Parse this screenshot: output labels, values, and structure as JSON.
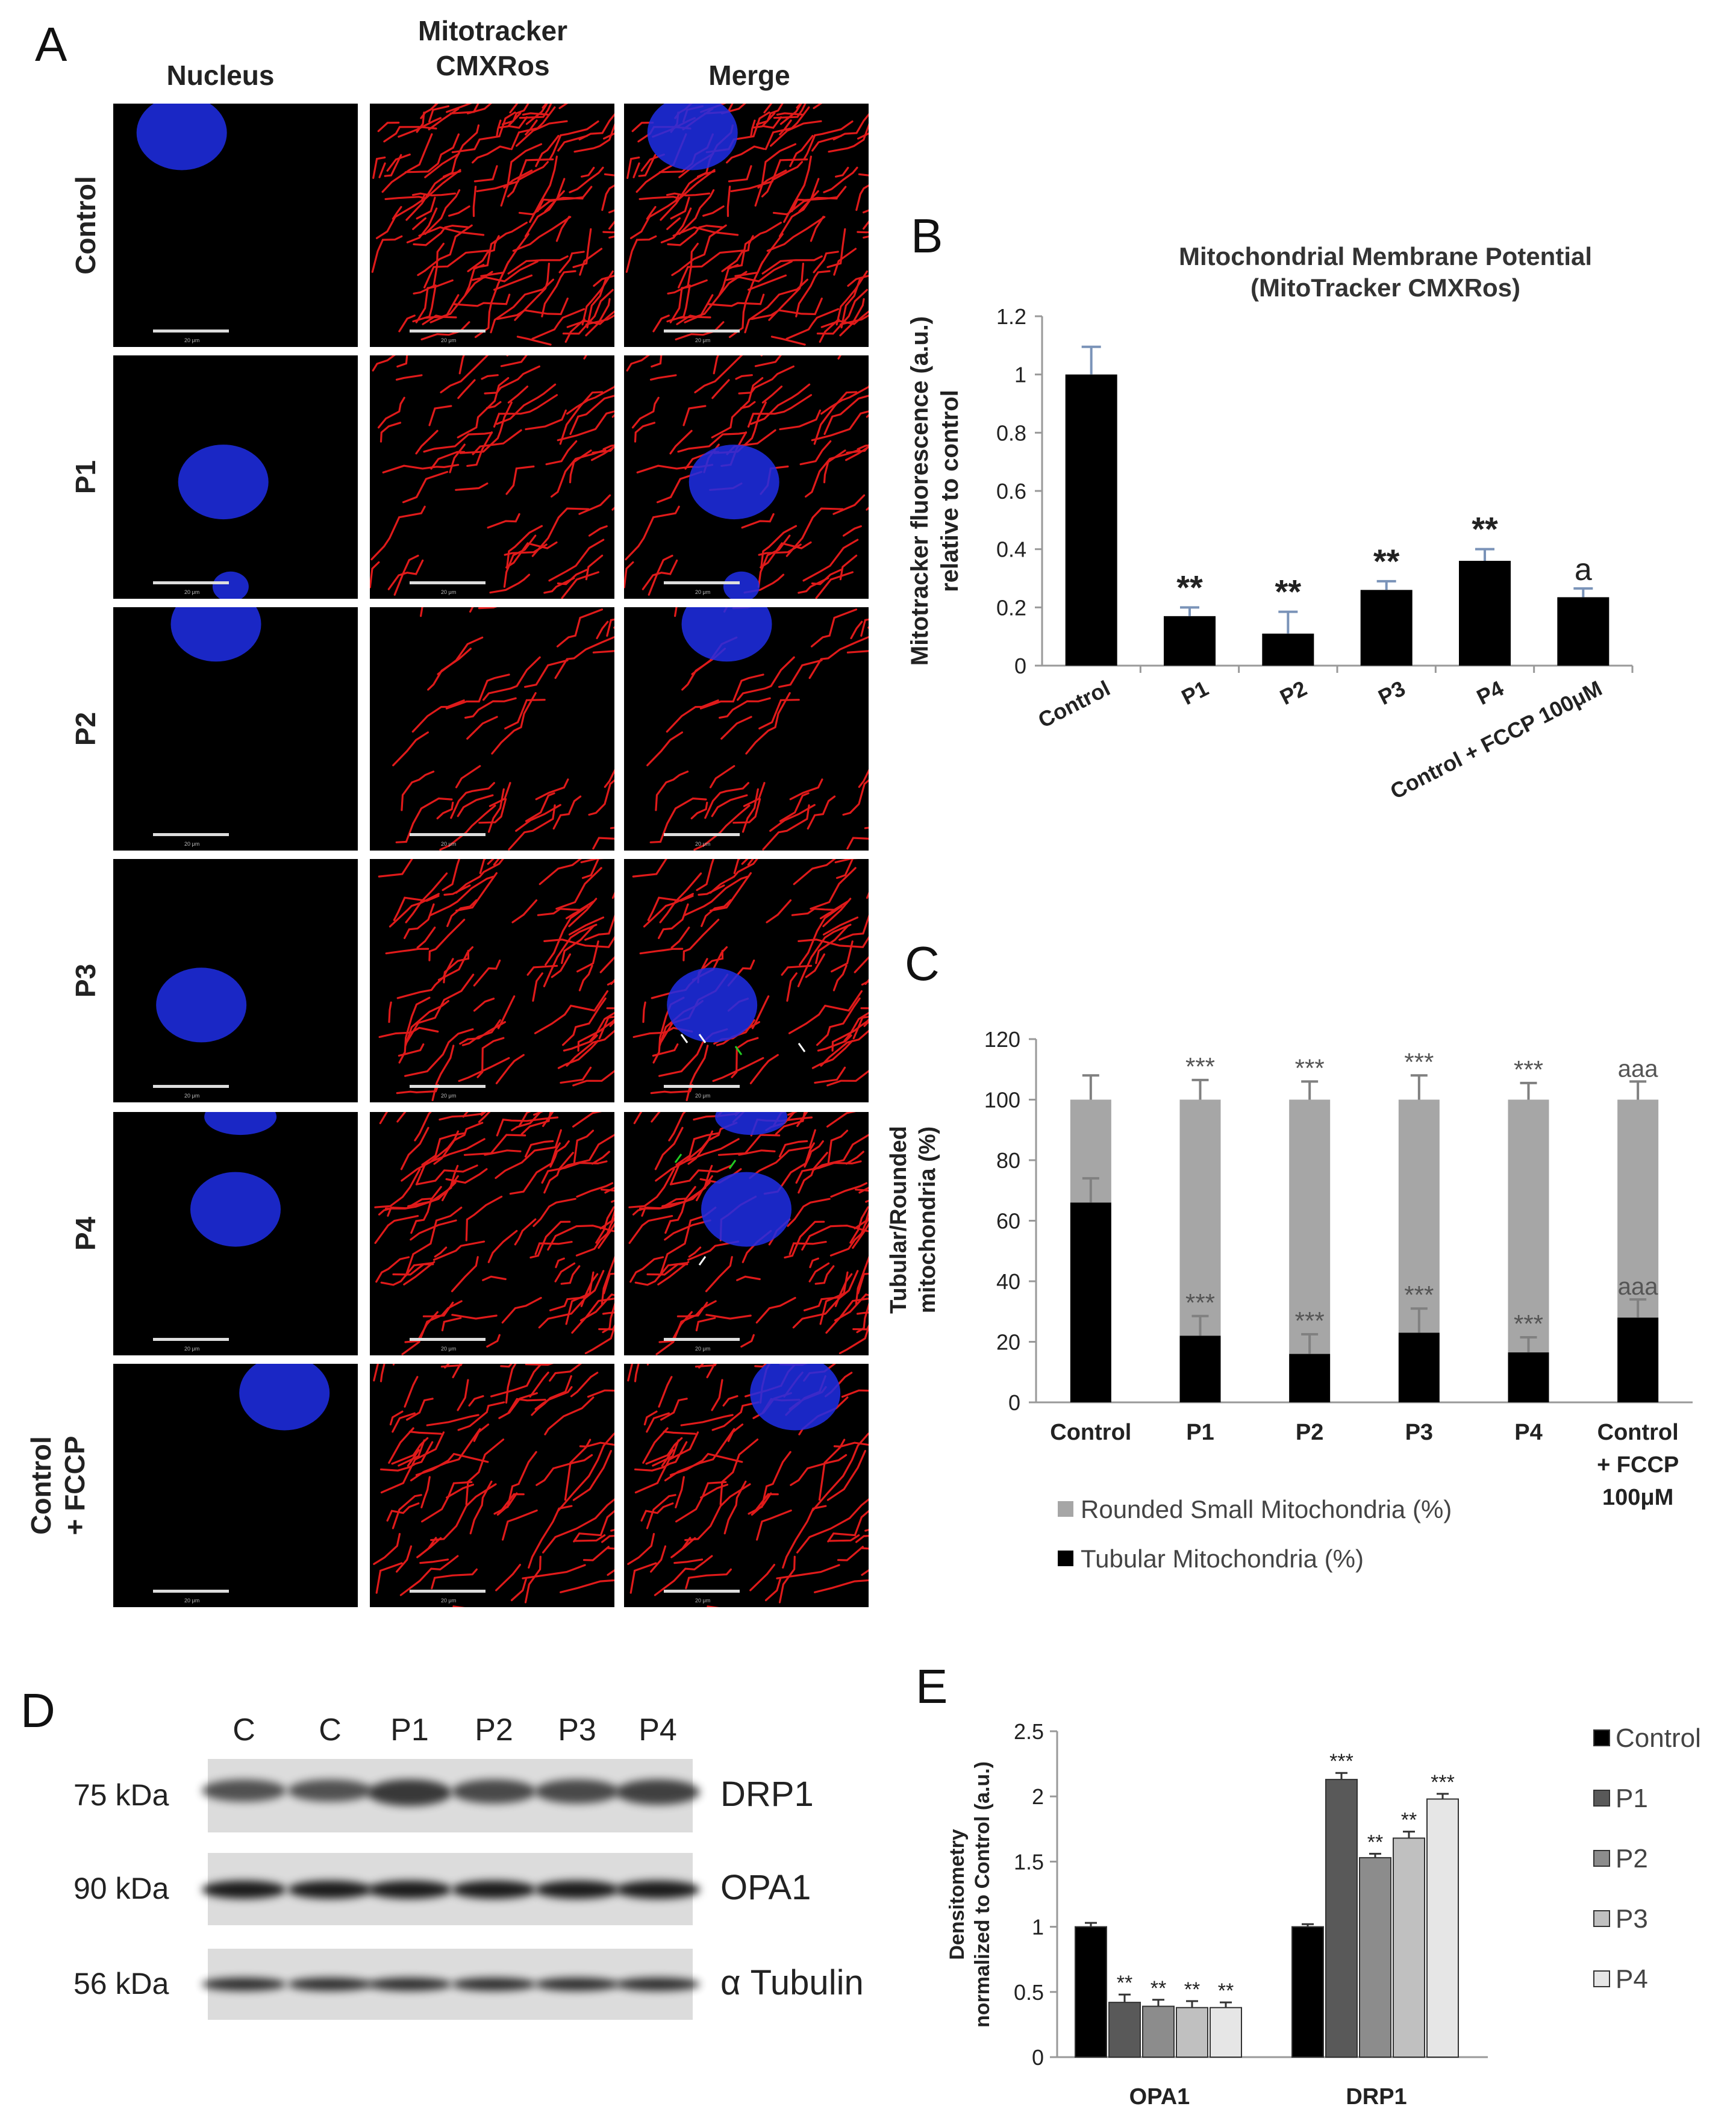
{
  "panels": {
    "a": "A",
    "b": "B",
    "c": "C",
    "d": "D",
    "e": "E"
  },
  "micro": {
    "columns": [
      "Nucleus",
      "Mitotracker\nCMXRos",
      "Merge"
    ],
    "rows": [
      "Control",
      "P1",
      "P2",
      "P3",
      "P4",
      "Control\n+ FCCP"
    ],
    "scale_label": "20 μm",
    "colors": {
      "nucleus": "#1f2ee8",
      "mito": "#e01a1a",
      "arrow_white": "#ffffff",
      "arrow_green": "#22cc22"
    }
  },
  "chart_data": [
    {
      "type": "bar",
      "panel": "B",
      "title": "Mitochondrial Membrane Potential\n(MitoTracker CMXRos)",
      "ylabel": "Mitotracker fluorescence (a.u.)\nrelative to control",
      "categories": [
        "Control",
        "P1",
        "P2",
        "P3",
        "P4",
        "Control + FCCP 100μM"
      ],
      "values": [
        1.0,
        0.17,
        0.11,
        0.26,
        0.36,
        0.235
      ],
      "errors": [
        0.095,
        0.03,
        0.075,
        0.03,
        0.04,
        0.03
      ],
      "annotations": [
        "",
        "**",
        "**",
        "**",
        "**",
        "a"
      ],
      "ylim": [
        0,
        1.2
      ],
      "yticks": [
        "0",
        "0.2",
        "0.4",
        "0.6",
        "0.8",
        "1",
        "1.2"
      ],
      "bar_color": "#000000",
      "error_color": "#7a93b8"
    },
    {
      "type": "bar",
      "stacked": true,
      "panel": "C",
      "ylabel": "Tubular/Rounded\nmitochondria (%)",
      "categories": [
        "Control",
        "P1",
        "P2",
        "P3",
        "P4",
        "Control\n+ FCCP\n100μM"
      ],
      "series": [
        {
          "name": "Tubular Mitochondria (%)",
          "values": [
            66,
            22,
            16,
            23,
            16.5,
            28
          ],
          "errors": [
            8,
            6.5,
            6.5,
            8,
            5,
            6
          ],
          "annotations": [
            "",
            "***",
            "***",
            "***",
            "***",
            "aaa"
          ],
          "color": "#000000"
        },
        {
          "name": "Rounded Small Mitochondria (%)",
          "values": [
            34,
            78,
            84,
            77,
            83.5,
            72
          ],
          "errors": [
            8,
            6.5,
            6,
            8,
            5.5,
            6
          ],
          "annotations": [
            "",
            "***",
            "***",
            "***",
            "***",
            "aaa"
          ],
          "color": "#a6a6a6"
        }
      ],
      "ylim": [
        0,
        120
      ],
      "yticks": [
        "0",
        "20",
        "40",
        "60",
        "80",
        "100",
        "120"
      ],
      "legend": [
        "Rounded Small Mitochondria (%)",
        "Tubular Mitochondria (%)"
      ]
    },
    {
      "type": "bar",
      "panel": "E",
      "ylabel": "Densitometry\nnormalized to Control (a.u.)",
      "categories": [
        "OPA1",
        "DRP1"
      ],
      "series": [
        {
          "name": "Control",
          "values": [
            1.0,
            1.0
          ],
          "errors": [
            0.03,
            0.02
          ],
          "annotations": [
            "",
            ""
          ],
          "color": "#000000"
        },
        {
          "name": "P1",
          "values": [
            0.42,
            2.13
          ],
          "errors": [
            0.06,
            0.05
          ],
          "annotations": [
            "**",
            "***"
          ],
          "color": "#595959"
        },
        {
          "name": "P2",
          "values": [
            0.39,
            1.53
          ],
          "errors": [
            0.05,
            0.03
          ],
          "annotations": [
            "**",
            "**"
          ],
          "color": "#8c8c8c"
        },
        {
          "name": "P3",
          "values": [
            0.38,
            1.68
          ],
          "errors": [
            0.05,
            0.05
          ],
          "annotations": [
            "**",
            "**"
          ],
          "color": "#c0c0c0"
        },
        {
          "name": "P4",
          "values": [
            0.38,
            1.98
          ],
          "errors": [
            0.04,
            0.04
          ],
          "annotations": [
            "**",
            "***"
          ],
          "color": "#e6e6e6"
        }
      ],
      "ylim": [
        0,
        2.5
      ],
      "yticks": [
        "0",
        "0.5",
        "1",
        "1.5",
        "2",
        "2.5"
      ]
    }
  ],
  "western": {
    "lanes": [
      "C",
      "C",
      "P1",
      "P2",
      "P3",
      "P4"
    ],
    "rows": [
      {
        "kda": "75 kDa",
        "protein": "DRP1"
      },
      {
        "kda": "90 kDa",
        "protein": "OPA1"
      },
      {
        "kda": "56 kDa",
        "protein": "α Tubulin"
      }
    ],
    "drp1_intensity": [
      0.85,
      0.85,
      1.0,
      0.9,
      0.9,
      0.95
    ]
  }
}
